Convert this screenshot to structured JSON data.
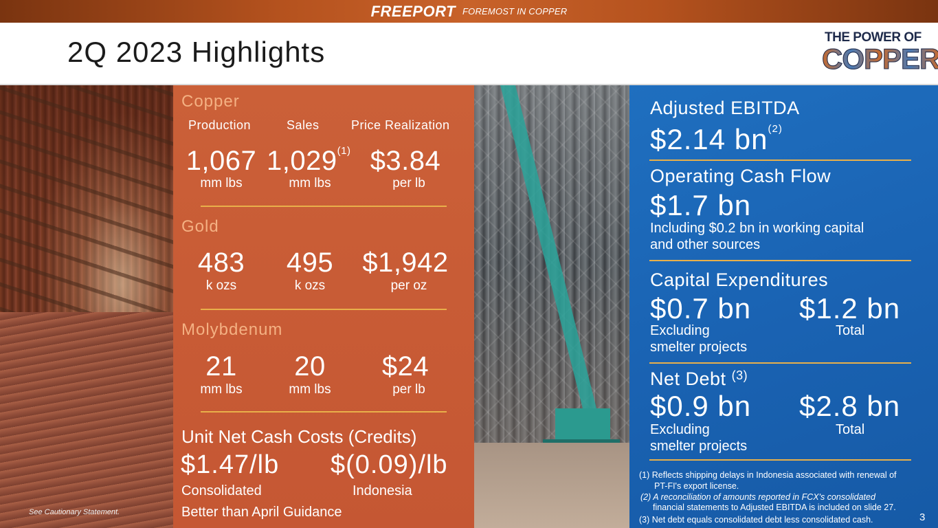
{
  "header": {
    "brand_name": "FREEPORT",
    "brand_tagline": "FOREMOST IN COPPER",
    "title": "2Q 2023 Highlights",
    "logo_line1": "THE POWER OF",
    "logo_line2": "COPPER"
  },
  "left_photo": {
    "caption": "See Cautionary Statement."
  },
  "metrics": {
    "columns": [
      "Production",
      "Sales",
      "Price Realization"
    ],
    "copper": {
      "label": "Copper",
      "production": "1,067",
      "production_unit": "mm lbs",
      "sales": "1,029",
      "sales_note": "(1)",
      "sales_unit": "mm lbs",
      "price": "$3.84",
      "price_unit": "per lb"
    },
    "gold": {
      "label": "Gold",
      "production": "483",
      "production_unit": "k ozs",
      "sales": "495",
      "sales_unit": "k ozs",
      "price": "$1,942",
      "price_unit": "per oz"
    },
    "molybdenum": {
      "label": "Molybdenum",
      "production": "21",
      "production_unit": "mm lbs",
      "sales": "20",
      "sales_unit": "mm lbs",
      "price": "$24",
      "price_unit": "per lb"
    },
    "unit_costs": {
      "label": "Unit Net Cash Costs (Credits)",
      "consolidated_value": "$1.47/lb",
      "consolidated_label": "Consolidated",
      "indonesia_value": "$(0.09)/lb",
      "indonesia_label": "Indonesia",
      "note": "Better than April Guidance"
    }
  },
  "financials": {
    "ebitda": {
      "label": "Adjusted EBITDA",
      "value": "$2.14 bn",
      "note": "(2)"
    },
    "ocf": {
      "label": "Operating Cash Flow",
      "value": "$1.7 bn",
      "sub1": "Including $0.2 bn in working capital",
      "sub2": "and other sources"
    },
    "capex": {
      "label": "Capital Expenditures",
      "value1": "$0.7 bn",
      "value2": "$1.2 bn",
      "sub1a": "Excluding",
      "sub1b": "smelter projects",
      "sub2": "Total"
    },
    "net_debt": {
      "label": "Net Debt",
      "note": "(3)",
      "value1": "$0.9 bn",
      "value2": "$2.8 bn",
      "sub1a": "Excluding",
      "sub1b": "smelter projects",
      "sub2": "Total"
    }
  },
  "footnotes": {
    "f1a": "(1) Reflects shipping delays in Indonesia associated with renewal of",
    "f1b": "PT-FI's export license.",
    "f2a": "(2) A reconciliation of amounts reported in FCX's consolidated",
    "f2b": "financial statements to Adjusted EBITDA is included on slide 27.",
    "f3": "(3) Net debt equals consolidated debt less consolidated cash."
  },
  "page_number": "3",
  "colors": {
    "orange_panel": "#c95c36",
    "blue_panel": "#1a63b3",
    "section_head": "#f4b183",
    "divider": "#e9b04a"
  }
}
